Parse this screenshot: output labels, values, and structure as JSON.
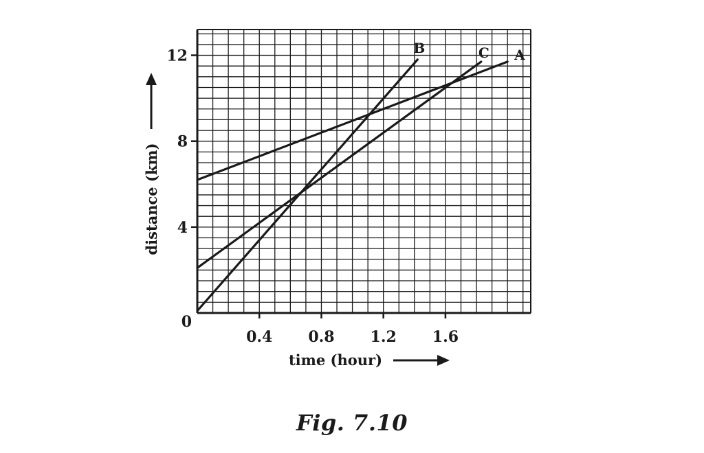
{
  "chart_data": {
    "type": "line",
    "xlabel": "time (hour)",
    "ylabel": "distance (km)",
    "xlim": [
      0,
      2.15
    ],
    "ylim": [
      0,
      13.2
    ],
    "x_ticks": [
      0.4,
      0.8,
      1.2,
      1.6
    ],
    "x_tick_labels": [
      "0.4",
      "0.8",
      "1.2",
      "1.6"
    ],
    "y_ticks": [
      4,
      8,
      12
    ],
    "y_tick_labels": [
      "4",
      "8",
      "12"
    ],
    "origin_label": "0",
    "grid": true,
    "series": [
      {
        "name": "A",
        "x": [
          0,
          2.0
        ],
        "y": [
          6.2,
          11.7
        ]
      },
      {
        "name": "B",
        "x": [
          0,
          1.42
        ],
        "y": [
          0.1,
          11.8
        ]
      },
      {
        "name": "C",
        "x": [
          0,
          1.83
        ],
        "y": [
          2.1,
          11.7
        ]
      }
    ]
  },
  "caption": "Fig.  7.10",
  "colors": {
    "ink": "#1a1a1a",
    "background": "#ffffff"
  }
}
